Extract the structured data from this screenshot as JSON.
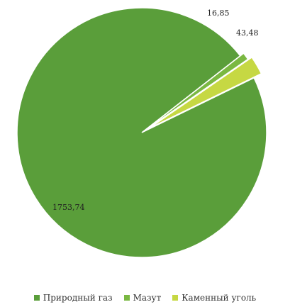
{
  "chart_data": {
    "type": "pie",
    "title": "",
    "slices": [
      {
        "label": "Природный газ",
        "value": 1753.74,
        "display_value": "1753,74",
        "color": "#5a9e3a"
      },
      {
        "label": "Мазут",
        "value": 16.85,
        "display_value": "16,85",
        "color": "#7ab842"
      },
      {
        "label": "Каменный уголь",
        "value": 43.48,
        "display_value": "43,48",
        "color": "#c6d843"
      }
    ],
    "legend_placement": "bottom",
    "exploded": true
  }
}
